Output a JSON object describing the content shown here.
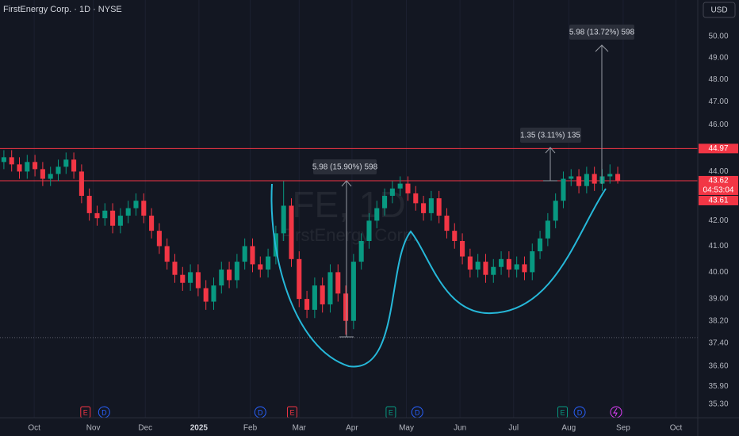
{
  "chart_data": {
    "type": "candlestick",
    "title": "FirstEnergy Corp. · 1D · NYSE",
    "currency": "USD",
    "watermark": [
      "FE, 1D",
      "FirstEnergy Corp."
    ],
    "log_scale": true,
    "grid": true,
    "up_color": "#089981",
    "down_color": "#f23645",
    "ylim": [
      34.85,
      51.76
    ],
    "yticks": [
      {
        "value": 50,
        "label": "50.00"
      },
      {
        "value": 49,
        "label": "49.00"
      },
      {
        "value": 48,
        "label": "48.00"
      },
      {
        "value": 47,
        "label": "47.00"
      },
      {
        "value": 46,
        "label": "46.00"
      },
      {
        "value": 44,
        "label": "44.00"
      },
      {
        "value": 42,
        "label": "42.00"
      },
      {
        "value": 41,
        "label": "41.00"
      },
      {
        "value": 40,
        "label": "40.00"
      },
      {
        "value": 39,
        "label": "39.00"
      },
      {
        "value": 38.2,
        "label": "38.20"
      },
      {
        "value": 37.4,
        "label": "37.40"
      },
      {
        "value": 36.6,
        "label": "36.60"
      },
      {
        "value": 35.9,
        "label": "35.90"
      },
      {
        "value": 35.3,
        "label": "35.30"
      }
    ],
    "xlim": [
      -0.5,
      89.3
    ],
    "xticks": [
      {
        "value": 3.9,
        "label": "Oct"
      },
      {
        "value": 11.5,
        "label": "Nov"
      },
      {
        "value": 18.2,
        "label": "Dec"
      },
      {
        "value": 25.1,
        "label": "2025"
      },
      {
        "value": 31.7,
        "label": "Feb"
      },
      {
        "value": 38.0,
        "label": "Mar"
      },
      {
        "value": 44.8,
        "label": "Apr"
      },
      {
        "value": 51.8,
        "label": "May"
      },
      {
        "value": 58.7,
        "label": "Jun"
      },
      {
        "value": 65.6,
        "label": "Jul"
      },
      {
        "value": 72.7,
        "label": "Aug"
      },
      {
        "value": 79.7,
        "label": "Sep"
      },
      {
        "value": 86.5,
        "label": "Oct"
      }
    ],
    "open": [
      44.4,
      44.6,
      44.3,
      44.0,
      44.4,
      44.1,
      43.7,
      43.9,
      44.2,
      44.5,
      44.0,
      43.0,
      42.3,
      42.1,
      42.4,
      41.8,
      42.2,
      42.5,
      42.8,
      42.2,
      41.6,
      41.0,
      40.4,
      39.9,
      39.6,
      40.0,
      39.4,
      38.9,
      39.5,
      40.1,
      39.7,
      40.4,
      41.0,
      40.3,
      40.1,
      40.6,
      41.5,
      42.6,
      40.5,
      39.0,
      38.6,
      39.5,
      38.8,
      40.0,
      39.2,
      38.2,
      40.4,
      41.2,
      42.0,
      42.5,
      43.0,
      43.3,
      43.5,
      43.1,
      42.7,
      42.3,
      42.9,
      42.2,
      41.6,
      41.2,
      40.6,
      40.1,
      40.4,
      39.9,
      40.2,
      40.5,
      40.1,
      40.3,
      40.0,
      40.8,
      41.3,
      42.0,
      42.8,
      43.7,
      43.8,
      43.4,
      43.9,
      43.5,
      43.8,
      43.9
    ],
    "high": [
      44.9,
      44.9,
      44.6,
      44.7,
      44.7,
      44.4,
      44.2,
      44.5,
      44.8,
      44.8,
      44.3,
      43.3,
      42.6,
      42.7,
      42.7,
      42.5,
      42.8,
      43.1,
      43.1,
      42.5,
      41.9,
      41.3,
      40.7,
      40.2,
      40.3,
      40.3,
      39.7,
      39.8,
      40.4,
      40.4,
      40.7,
      41.3,
      41.3,
      40.6,
      40.9,
      41.8,
      43.6,
      42.9,
      40.8,
      39.3,
      39.8,
      39.8,
      40.3,
      40.3,
      39.5,
      40.7,
      41.5,
      42.3,
      42.8,
      43.3,
      43.6,
      43.8,
      43.8,
      43.4,
      43.0,
      43.2,
      43.2,
      42.5,
      41.9,
      41.5,
      40.9,
      40.7,
      40.7,
      40.5,
      40.8,
      40.8,
      40.6,
      40.6,
      41.1,
      41.6,
      42.3,
      43.1,
      44.0,
      44.1,
      44.1,
      44.2,
      44.2,
      44.1,
      44.3,
      44.2
    ],
    "low": [
      44.1,
      44.0,
      43.7,
      43.7,
      43.8,
      43.4,
      43.4,
      43.6,
      43.9,
      43.7,
      42.7,
      42.0,
      41.8,
      41.8,
      41.5,
      41.5,
      41.9,
      42.2,
      41.9,
      41.3,
      40.7,
      40.1,
      39.6,
      39.3,
      39.3,
      39.1,
      38.6,
      38.6,
      39.2,
      39.4,
      39.4,
      40.1,
      40.0,
      39.8,
      39.8,
      40.3,
      41.2,
      40.2,
      38.7,
      38.3,
      38.3,
      38.5,
      38.5,
      38.9,
      37.7,
      37.9,
      40.1,
      40.9,
      41.7,
      42.2,
      42.7,
      43.0,
      42.8,
      42.4,
      42.0,
      42.0,
      41.9,
      41.3,
      40.9,
      40.3,
      39.8,
      39.8,
      39.6,
      39.6,
      39.9,
      39.8,
      39.8,
      39.7,
      39.7,
      40.5,
      41.0,
      41.7,
      42.5,
      43.4,
      43.1,
      43.1,
      43.2,
      43.2,
      43.5,
      43.5
    ],
    "close": [
      44.6,
      44.3,
      44.0,
      44.4,
      44.1,
      43.7,
      43.9,
      44.2,
      44.5,
      44.0,
      43.0,
      42.3,
      42.1,
      42.4,
      41.8,
      42.2,
      42.5,
      42.8,
      42.2,
      41.6,
      41.0,
      40.4,
      39.9,
      39.6,
      40.0,
      39.4,
      38.9,
      39.5,
      40.1,
      39.7,
      40.4,
      41.0,
      40.3,
      40.1,
      40.6,
      41.5,
      42.6,
      40.5,
      39.0,
      38.6,
      39.5,
      38.8,
      40.0,
      39.2,
      38.2,
      40.4,
      41.2,
      42.0,
      42.5,
      43.0,
      43.3,
      43.5,
      43.1,
      42.7,
      42.3,
      42.9,
      42.2,
      41.6,
      41.2,
      40.6,
      40.1,
      40.4,
      39.9,
      40.2,
      40.5,
      40.1,
      40.3,
      40.0,
      40.8,
      41.3,
      42.0,
      42.8,
      43.7,
      43.8,
      43.4,
      43.9,
      43.5,
      43.8,
      43.9,
      43.62
    ],
    "price_lines": [
      {
        "value": 44.97,
        "color": "#f23645",
        "style": "solid",
        "label": "44.97"
      },
      {
        "value": 43.62,
        "color": "#f23645",
        "style": "solid",
        "label": "43.62",
        "countdown": "04:53:04"
      },
      {
        "value": 43.61,
        "color": "#f23645",
        "style": "none",
        "label": "43.61"
      },
      {
        "value": 37.6,
        "color": "#5d606b",
        "style": "dotted"
      }
    ],
    "annotations": [
      "5.98 (15.90%) 598",
      "1.35 (3.11%) 135",
      "5.98 (13.72%) 598"
    ],
    "events": [
      {
        "label": "E",
        "x": 10.5,
        "color": "#f23645"
      },
      {
        "label": "D",
        "x": 12.9,
        "color": "#2962ff"
      },
      {
        "label": "D",
        "x": 33.0,
        "color": "#2962ff"
      },
      {
        "label": "E",
        "x": 37.1,
        "color": "#f23645"
      },
      {
        "label": "E",
        "x": 49.8,
        "color": "#089981"
      },
      {
        "label": "D",
        "x": 53.2,
        "color": "#2962ff"
      },
      {
        "label": "E",
        "x": 71.9,
        "color": "#089981"
      },
      {
        "label": "D",
        "x": 74.1,
        "color": "#2962ff"
      }
    ]
  }
}
